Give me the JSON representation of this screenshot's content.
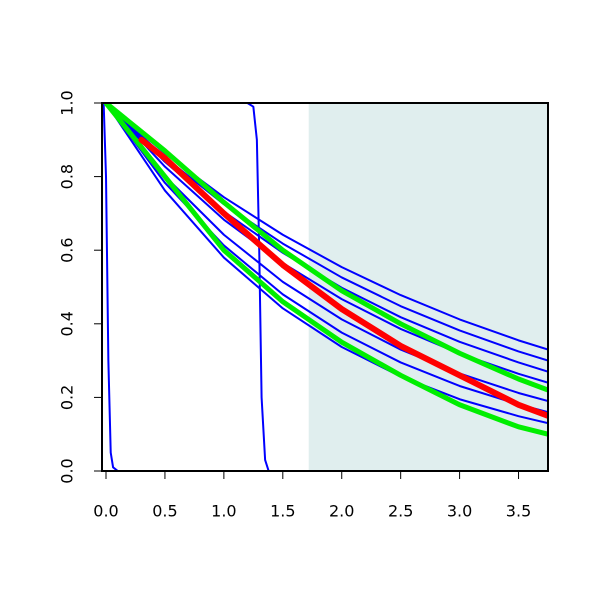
{
  "chart_data": {
    "type": "line",
    "xlim": [
      -0.034,
      3.75
    ],
    "ylim": [
      0,
      1
    ],
    "xticks": [
      {
        "value": 0,
        "label": "0.0"
      },
      0.5,
      {
        "value": 1,
        "label": "1.0"
      },
      1.5,
      {
        "value": 2,
        "label": "2.0"
      },
      2.5,
      {
        "value": 3,
        "label": "3.0"
      },
      3.5
    ],
    "yticks": [
      {
        "value": 0,
        "label": "0.0"
      },
      0.2,
      0.4,
      0.6,
      0.8,
      {
        "value": 1,
        "label": "1.0"
      }
    ],
    "shaded_x": [
      1.72,
      3.75
    ],
    "shaded_color": "#e0eeee",
    "series": [
      {
        "color": "#0000ff",
        "line_width": 2,
        "x": [
          -0.02,
          0,
          0.02,
          0.04,
          0.06,
          0.1,
          3.75
        ],
        "values": [
          1,
          0.8,
          0.3,
          0.05,
          0.01,
          0,
          0
        ]
      },
      {
        "color": "#0000ff",
        "line_width": 2,
        "x": [
          0,
          1.2,
          1.25,
          1.28,
          1.3,
          1.32,
          1.35,
          1.38,
          3.75
        ],
        "values": [
          1,
          1,
          0.99,
          0.9,
          0.6,
          0.2,
          0.03,
          0,
          0
        ]
      },
      {
        "color": "#0000ff",
        "line_width": 2,
        "x": [
          0,
          0.5,
          1,
          1.5,
          2,
          2.5,
          3,
          3.5,
          3.75
        ],
        "values": [
          1,
          0.863,
          0.744,
          0.642,
          0.554,
          0.478,
          0.412,
          0.355,
          0.33
        ]
      },
      {
        "color": "#0000ff",
        "line_width": 2,
        "x": [
          0,
          0.5,
          1,
          1.5,
          2,
          2.5,
          3,
          3.5,
          3.75
        ],
        "values": [
          1,
          0.852,
          0.725,
          0.618,
          0.526,
          0.448,
          0.382,
          0.325,
          0.3
        ]
      },
      {
        "color": "#0000ff",
        "line_width": 2,
        "x": [
          0,
          0.5,
          1,
          1.5,
          2,
          2.5,
          3,
          3.5,
          3.75
        ],
        "values": [
          1,
          0.84,
          0.705,
          0.593,
          0.498,
          0.418,
          0.351,
          0.295,
          0.27
        ]
      },
      {
        "color": "#0000ff",
        "line_width": 2,
        "x": [
          0,
          0.5,
          1,
          1.5,
          2,
          2.5,
          3,
          3.5,
          3.75
        ],
        "values": [
          1,
          0.827,
          0.683,
          0.565,
          0.467,
          0.386,
          0.319,
          0.264,
          0.24
        ]
      },
      {
        "color": "#0000ff",
        "line_width": 2,
        "x": [
          0,
          0.5,
          1,
          1.5,
          2,
          2.5,
          3,
          3.5,
          3.75
        ],
        "values": [
          1,
          0.801,
          0.642,
          0.514,
          0.412,
          0.33,
          0.265,
          0.212,
          0.19
        ]
      },
      {
        "color": "#0000ff",
        "line_width": 2,
        "x": [
          0,
          0.5,
          1,
          1.5,
          2,
          2.5,
          3,
          3.5,
          3.75
        ],
        "values": [
          1,
          0.783,
          0.613,
          0.48,
          0.376,
          0.295,
          0.231,
          0.181,
          0.16
        ]
      },
      {
        "color": "#0000ff",
        "line_width": 2,
        "x": [
          0,
          0.5,
          1,
          1.5,
          2,
          2.5,
          3,
          3.5,
          3.75
        ],
        "values": [
          1,
          0.762,
          0.58,
          0.442,
          0.337,
          0.257,
          0.195,
          0.149,
          0.13
        ]
      },
      {
        "color": "#00ee00",
        "line_width": 5,
        "x": [
          0,
          0.5,
          1,
          1.5,
          2,
          2.5,
          3,
          3.5,
          3.75
        ],
        "values": [
          1,
          0.87,
          0.73,
          0.6,
          0.49,
          0.4,
          0.32,
          0.25,
          0.22
        ]
      },
      {
        "color": "#00ee00",
        "line_width": 5,
        "x": [
          0,
          0.5,
          1,
          1.5,
          2,
          2.5,
          3,
          3.5,
          3.75
        ],
        "values": [
          1,
          0.8,
          0.6,
          0.46,
          0.35,
          0.26,
          0.18,
          0.12,
          0.1
        ]
      },
      {
        "color": "#ff0000",
        "line_width": 6,
        "x": [
          0.3,
          0.5,
          1,
          1.5,
          2,
          2.5,
          3,
          3.5,
          3.75
        ],
        "values": [
          0.9,
          0.85,
          0.7,
          0.56,
          0.44,
          0.34,
          0.26,
          0.18,
          0.15
        ]
      }
    ]
  }
}
